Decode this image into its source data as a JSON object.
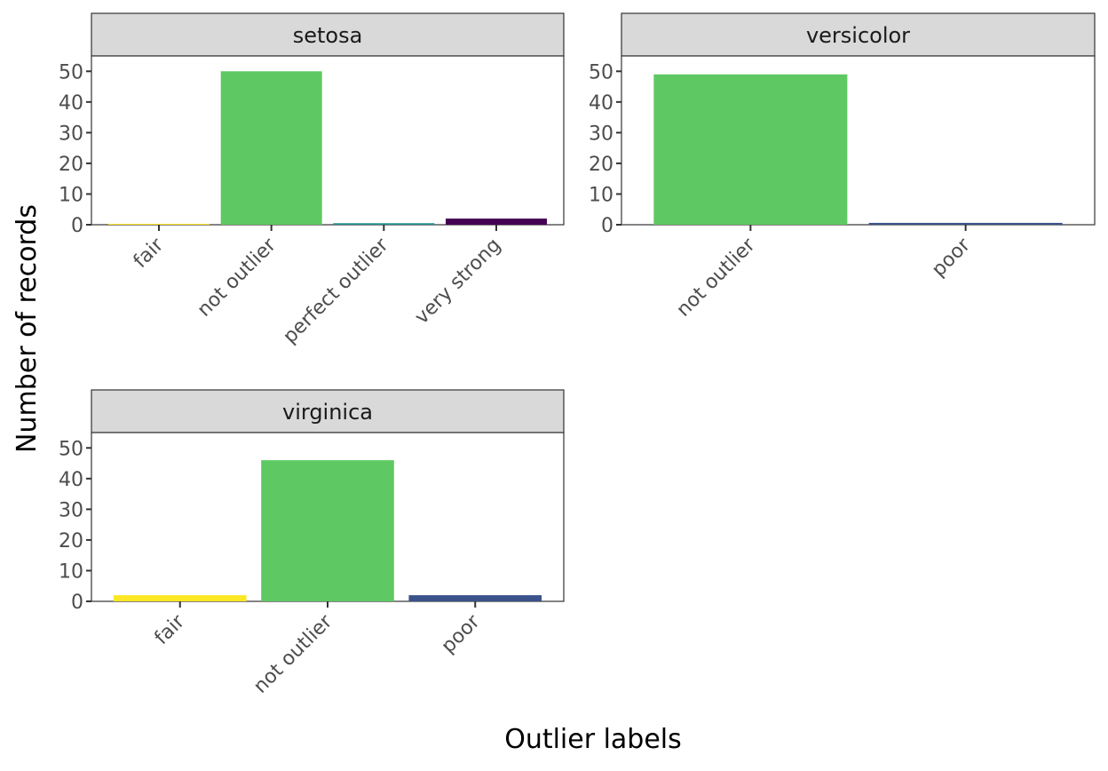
{
  "chart_data": {
    "type": "bar",
    "xlabel": "Outlier labels",
    "ylabel": "Number of records",
    "ylim": [
      0,
      55
    ],
    "y_ticks": [
      0,
      10,
      20,
      30,
      40,
      50
    ],
    "grid": false,
    "legend": "none",
    "label_colors": {
      "fair": "#fde725",
      "not outlier": "#5ec962",
      "perfect outlier": "#21918c",
      "very strong": "#440154",
      "poor": "#3b528b"
    },
    "facets": [
      {
        "name": "setosa",
        "categories": [
          "fair",
          "not outlier",
          "perfect outlier",
          "very strong"
        ],
        "values": [
          0.3,
          50,
          0.5,
          2
        ]
      },
      {
        "name": "versicolor",
        "categories": [
          "not outlier",
          "poor"
        ],
        "values": [
          49,
          0.6
        ]
      },
      {
        "name": "virginica",
        "categories": [
          "fair",
          "not outlier",
          "poor"
        ],
        "values": [
          2,
          46,
          2
        ]
      }
    ]
  }
}
